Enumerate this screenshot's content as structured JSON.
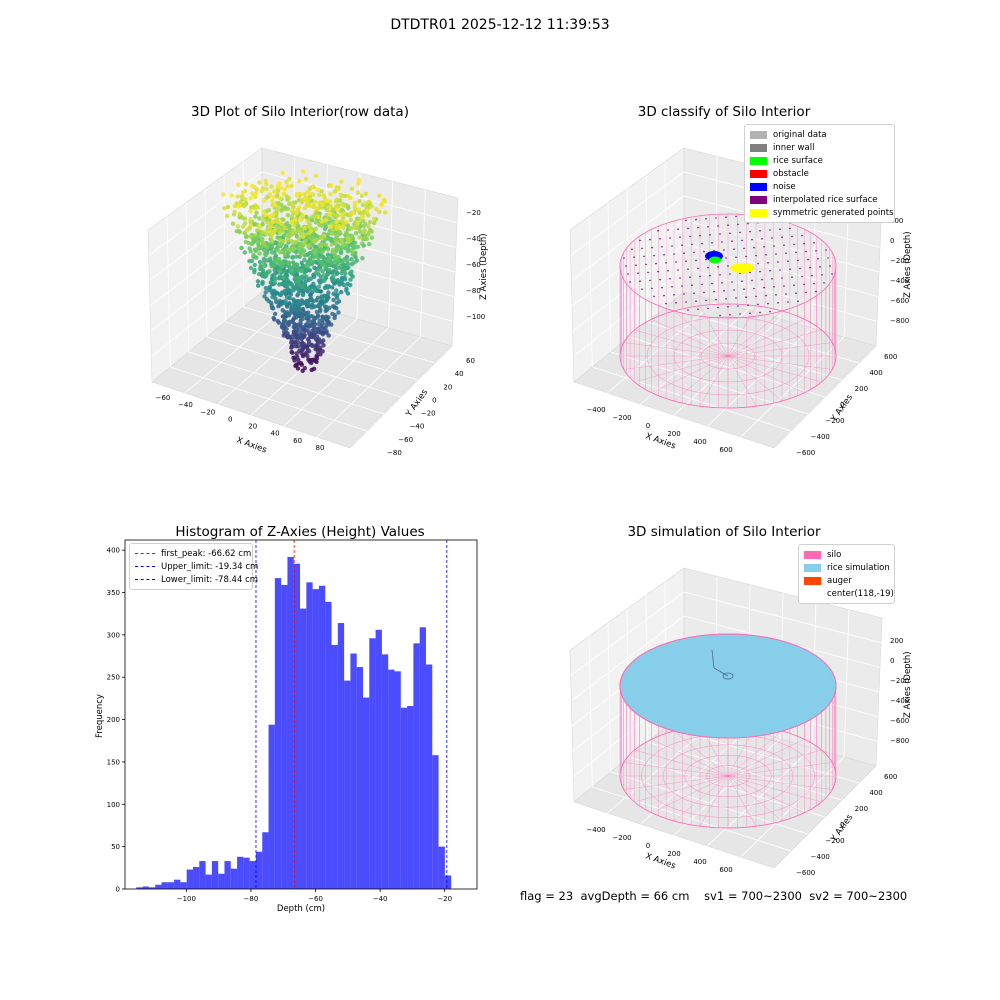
{
  "suptitle": "DTDTR01 2025-12-12 11:39:53",
  "panels": {
    "raw": {
      "title": "3D Plot of Silo Interior(row data)",
      "xlabel": "X Axies",
      "ylabel": "Y Axies",
      "zlabel": "Z Axies (Depth)",
      "xticks": [
        "−60",
        "−40",
        "−20",
        "0",
        "20",
        "40",
        "60",
        "80"
      ],
      "yticks": [
        "−80",
        "−60",
        "−40",
        "−20",
        "0",
        "20",
        "40",
        "60"
      ],
      "zticks": [
        "−20",
        "−40",
        "−60",
        "−80",
        "−100"
      ]
    },
    "classify": {
      "title": "3D classify of Silo Interior",
      "xlabel": "X Axies",
      "ylabel": "Y Axies",
      "zlabel": "Z Axies (Depth)",
      "xticks": [
        "−400",
        "−200",
        "0",
        "200",
        "400",
        "600"
      ],
      "yticks": [
        "−600",
        "−400",
        "−200",
        "0",
        "200",
        "400",
        "600"
      ],
      "zticks": [
        "200",
        "0",
        "−200",
        "−400",
        "−600",
        "−800"
      ],
      "legend": [
        {
          "label": "original data",
          "color": "#b3b3b3"
        },
        {
          "label": "inner wall",
          "color": "#808080"
        },
        {
          "label": "rice surface",
          "color": "#00ff00"
        },
        {
          "label": "obstacle",
          "color": "#ff0000"
        },
        {
          "label": "noise",
          "color": "#0000ff"
        },
        {
          "label": "interpolated rice surface",
          "color": "#800080"
        },
        {
          "label": "symmetric generated points",
          "color": "#ffff00"
        }
      ]
    },
    "histogram": {
      "title": "Histogram of Z-Axies (Height) Values",
      "legend": [
        {
          "label": "first_peak: -66.62 cm",
          "color": "#ff0000"
        },
        {
          "label": "Upper_limit: -19.34 cm",
          "color": "#0000ff"
        },
        {
          "label": "Lower_limit: -78.44 cm",
          "color": "#0000ff"
        }
      ]
    },
    "simulation": {
      "title": "3D simulation of Silo Interior",
      "xlabel": "X Axies",
      "ylabel": "Y Axies",
      "zlabel": "Z Axies (Depth)",
      "xticks": [
        "−400",
        "−200",
        "0",
        "200",
        "400",
        "600"
      ],
      "yticks": [
        "−600",
        "−400",
        "−200",
        "0",
        "200",
        "400",
        "600"
      ],
      "zticks": [
        "200",
        "0",
        "−200",
        "−400",
        "−600",
        "−800"
      ],
      "legend": [
        {
          "label": "silo",
          "color": "#ff69b4"
        },
        {
          "label": "rice simulation",
          "color": "#87ceeb"
        },
        {
          "label": "auger",
          "color": "#ff4500"
        },
        {
          "label": "center(118,-19)",
          "color": ""
        }
      ]
    }
  },
  "footer": {
    "flag": "flag = 23",
    "avg_depth": "avgDepth = 66 cm",
    "sv1": "sv1 = 700~2300",
    "sv2": "sv2 = 700~2300"
  },
  "chart_data": [
    {
      "type": "scatter",
      "title": "3D Plot of Silo Interior(row data)",
      "xlabel": "X Axies",
      "ylabel": "Y Axies",
      "zlabel": "Z Axies (Depth)",
      "xlim": [
        -70,
        90
      ],
      "ylim": [
        -90,
        70
      ],
      "zlim": [
        -115,
        -15
      ],
      "colormap": "viridis",
      "description_points": "dense cone-shaped point cloud, depth -115 to -20"
    },
    {
      "type": "scatter",
      "title": "3D classify of Silo Interior",
      "xlabel": "X Axies",
      "ylabel": "Y Axies",
      "zlabel": "Z Axies (Depth)",
      "xlim": [
        -500,
        700
      ],
      "ylim": [
        -700,
        700
      ],
      "zlim": [
        -900,
        300
      ]
    },
    {
      "type": "bar",
      "title": "Histogram of Z-Axies (Height) Values",
      "xlabel": "Depth (cm)",
      "ylabel": "Frequency",
      "xlim": [
        -119,
        -10
      ],
      "ylim": [
        0,
        412
      ],
      "xticks": [
        -100,
        -80,
        -60,
        -40,
        -20
      ],
      "yticks": [
        0,
        50,
        100,
        150,
        200,
        250,
        300,
        350,
        400
      ],
      "bar_color": "#0000ff",
      "bin_start": -115.5,
      "bin_width": 1.95,
      "values": [
        2,
        3,
        2,
        5,
        8,
        8,
        11,
        8,
        23,
        26,
        33,
        17,
        33,
        18,
        33,
        24,
        38,
        37,
        33,
        44,
        67,
        194,
        367,
        359,
        392,
        384,
        331,
        362,
        354,
        358,
        339,
        288,
        314,
        246,
        278,
        262,
        226,
        296,
        306,
        277,
        259,
        257,
        214,
        216,
        290,
        309,
        265,
        158,
        50,
        16
      ],
      "vlines": [
        {
          "name": "first_peak",
          "x": -66.62,
          "color": "#ff0000"
        },
        {
          "name": "Upper_limit",
          "x": -19.34,
          "color": "#0000ff"
        },
        {
          "name": "Lower_limit",
          "x": -78.44,
          "color": "#0000ff"
        }
      ],
      "legend_position": "top-left"
    },
    {
      "type": "scatter",
      "title": "3D simulation of Silo Interior",
      "xlabel": "X Axies",
      "ylabel": "Y Axies",
      "zlabel": "Z Axies (Depth)",
      "xlim": [
        -500,
        700
      ],
      "ylim": [
        -700,
        700
      ],
      "zlim": [
        -900,
        300
      ]
    }
  ]
}
